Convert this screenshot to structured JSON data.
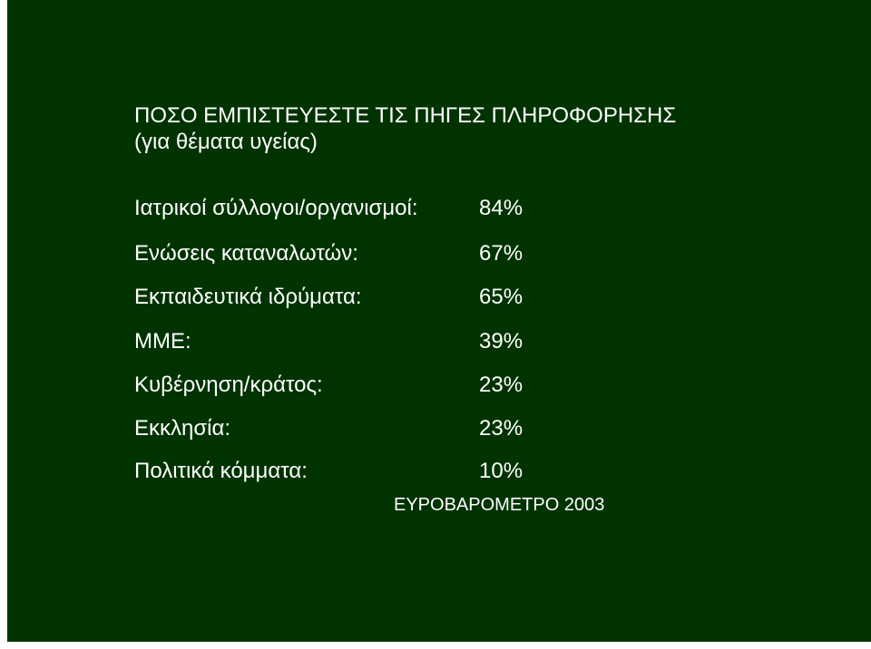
{
  "title": {
    "line1": "ΠΟΣΟ ΕΜΠΙΣΤΕΥΕΣΤΕ ΤΙΣ ΠΗΓΕΣ ΠΛΗΡΟΦΟΡΗΣΗΣ",
    "line2": "(για θέματα υγείας)"
  },
  "items": [
    {
      "label": "Ιατρικοί σύλλογοι/οργανισμοί:",
      "value": "84%"
    },
    {
      "label": "Ενώσεις καταναλωτών:",
      "value": "67%"
    },
    {
      "label": "Εκπαιδευτικά ιδρύματα:",
      "value": "65%"
    },
    {
      "label": "ΜΜΕ:",
      "value": "39%"
    },
    {
      "label": "Κυβέρνηση/κράτος:",
      "value": "23%"
    },
    {
      "label": "Εκκλησία:",
      "value": "23%"
    },
    {
      "label": "Πολιτικά κόμματα:",
      "value": "10%"
    }
  ],
  "source": "ΕΥΡΟΒΑΡΟΜΕΤΡΟ 2003",
  "colors": {
    "background": "#003300",
    "text": "#ffffff"
  }
}
